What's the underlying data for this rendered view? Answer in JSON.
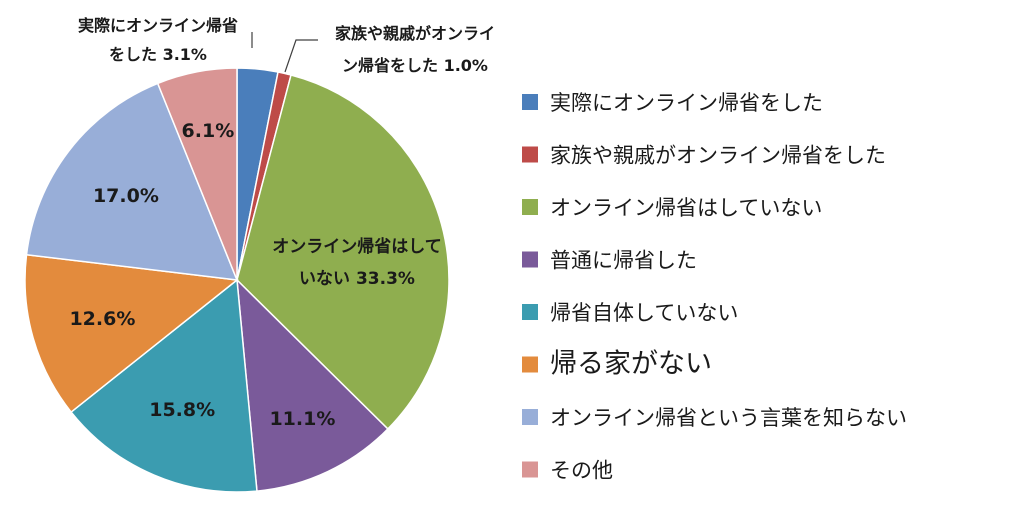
{
  "chart_data": {
    "type": "pie",
    "title": "",
    "legend_position": "right",
    "start_angle_deg": 0,
    "direction": "clockwise",
    "slices": [
      {
        "name": "実際にオンライン帰省をした",
        "value": 3.1,
        "label": "3.1%",
        "callout": [
          "実際にオンライン帰省",
          "をした 3.1%"
        ],
        "color": "#4a7ebb"
      },
      {
        "name": "家族や親戚がオンライン帰省をした",
        "value": 1.0,
        "label": "1.0%",
        "callout": [
          "家族や親戚がオンライ",
          "ン帰省をした 1.0%"
        ],
        "color": "#be4b48"
      },
      {
        "name": "オンライン帰省はしていない",
        "value": 33.3,
        "label": "33.3%",
        "callout": [
          "オンライン帰省はして",
          "いない 33.3%"
        ],
        "color": "#8fae4f"
      },
      {
        "name": "普通に帰省した",
        "value": 11.1,
        "label": "11.1%",
        "color": "#7a5a9a"
      },
      {
        "name": "帰省自体していない",
        "value": 15.8,
        "label": "15.8%",
        "color": "#3b9cb0"
      },
      {
        "name": "帰る家がない",
        "value": 12.6,
        "label": "12.6%",
        "color": "#e38b3d"
      },
      {
        "name": "オンライン帰省という言葉を知らない",
        "value": 17.0,
        "label": "17.0%",
        "color": "#98aed8"
      },
      {
        "name": "その他",
        "value": 6.1,
        "label": "6.1%",
        "color": "#d99594"
      }
    ]
  }
}
